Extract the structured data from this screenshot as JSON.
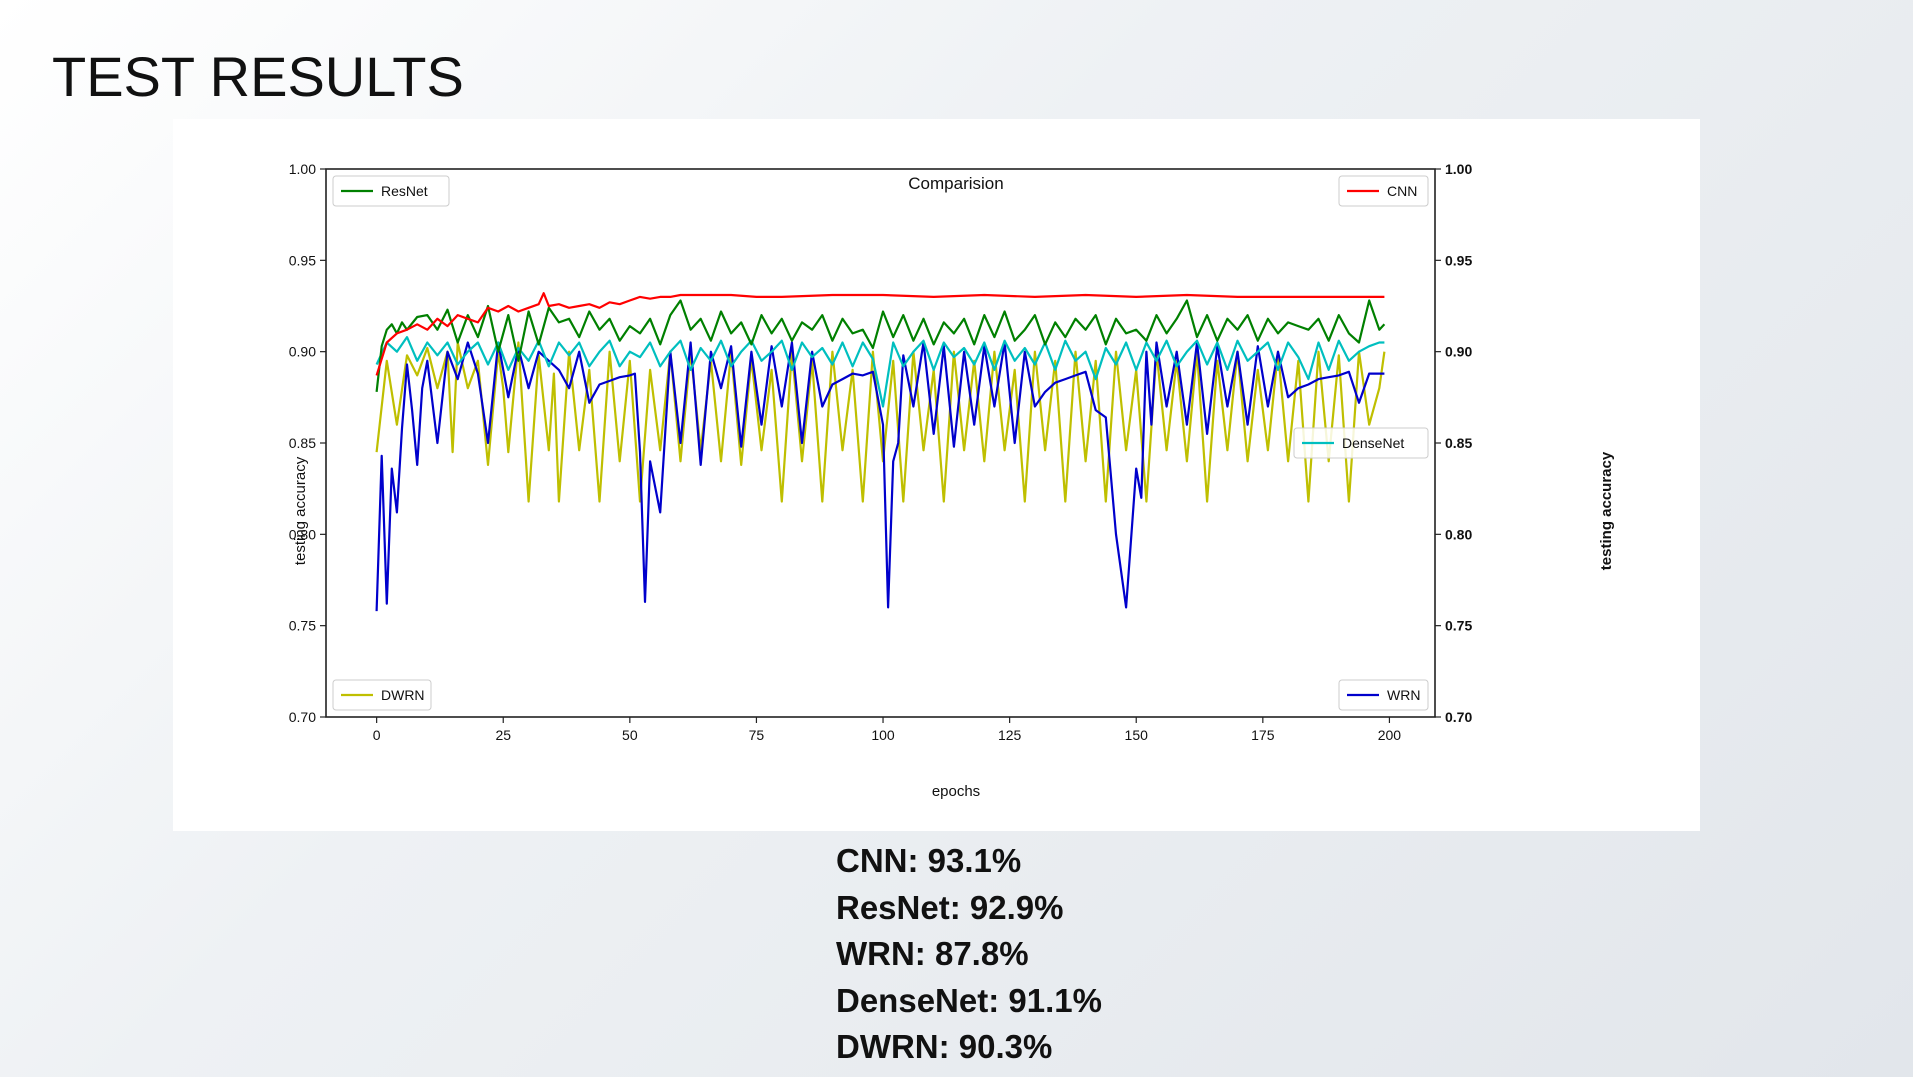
{
  "slide": {
    "title": "TEST RESULTS",
    "results": [
      "CNN: 93.1%",
      "ResNet: 92.9%",
      "WRN: 87.8%",
      "DenseNet: 91.1%",
      "DWRN: 90.3%"
    ]
  },
  "chart_data": {
    "type": "line",
    "title": "Comparision",
    "xlabel": "epochs",
    "ylabel": "testing accuracy",
    "ylabel_right": "testing accuracy",
    "xlim": [
      -10,
      209
    ],
    "ylim": [
      0.7,
      1.0
    ],
    "xticks": [
      0,
      25,
      50,
      75,
      100,
      125,
      150,
      175,
      200
    ],
    "yticks": [
      0.7,
      0.75,
      0.8,
      0.85,
      0.9,
      0.95,
      1.0
    ],
    "ytick_labels": [
      "0.70",
      "0.75",
      "0.80",
      "0.85",
      "0.90",
      "0.95",
      "1.00"
    ],
    "grid": false,
    "legends": [
      {
        "series": "ResNet",
        "placement": "top-left"
      },
      {
        "series": "CNN",
        "placement": "top-right"
      },
      {
        "series": "DenseNet",
        "placement": "center-right"
      },
      {
        "series": "DWRN",
        "placement": "bottom-left"
      },
      {
        "series": "WRN",
        "placement": "bottom-right"
      }
    ],
    "series": [
      {
        "name": "DWRN",
        "color": "#bfbf00",
        "x": [
          0,
          2,
          4,
          6,
          8,
          10,
          12,
          14,
          15,
          16,
          18,
          20,
          22,
          24,
          25,
          26,
          28,
          30,
          32,
          34,
          35,
          36,
          38,
          40,
          42,
          44,
          46,
          48,
          50,
          52,
          54,
          56,
          58,
          60,
          62,
          64,
          66,
          68,
          70,
          72,
          74,
          76,
          78,
          80,
          82,
          84,
          86,
          88,
          90,
          92,
          94,
          96,
          98,
          100,
          102,
          104,
          106,
          108,
          110,
          112,
          114,
          116,
          118,
          120,
          122,
          124,
          126,
          128,
          130,
          132,
          134,
          136,
          138,
          140,
          142,
          144,
          146,
          148,
          150,
          152,
          154,
          156,
          158,
          160,
          162,
          164,
          166,
          168,
          170,
          172,
          174,
          176,
          178,
          180,
          182,
          184,
          186,
          188,
          190,
          192,
          194,
          196,
          198,
          199
        ],
        "y": [
          0.845,
          0.895,
          0.86,
          0.898,
          0.887,
          0.902,
          0.88,
          0.9,
          0.845,
          0.905,
          0.88,
          0.895,
          0.838,
          0.9,
          0.88,
          0.845,
          0.905,
          0.818,
          0.898,
          0.846,
          0.888,
          0.818,
          0.9,
          0.846,
          0.89,
          0.818,
          0.9,
          0.84,
          0.895,
          0.818,
          0.89,
          0.846,
          0.9,
          0.84,
          0.9,
          0.846,
          0.895,
          0.84,
          0.9,
          0.838,
          0.896,
          0.846,
          0.89,
          0.818,
          0.9,
          0.84,
          0.895,
          0.818,
          0.9,
          0.846,
          0.89,
          0.818,
          0.9,
          0.84,
          0.895,
          0.818,
          0.9,
          0.846,
          0.89,
          0.818,
          0.9,
          0.846,
          0.895,
          0.84,
          0.9,
          0.846,
          0.89,
          0.818,
          0.9,
          0.846,
          0.895,
          0.818,
          0.9,
          0.84,
          0.895,
          0.818,
          0.9,
          0.846,
          0.89,
          0.818,
          0.9,
          0.846,
          0.895,
          0.84,
          0.9,
          0.818,
          0.895,
          0.846,
          0.9,
          0.84,
          0.89,
          0.846,
          0.9,
          0.84,
          0.895,
          0.818,
          0.9,
          0.84,
          0.898,
          0.818,
          0.9,
          0.86,
          0.88,
          0.9
        ]
      },
      {
        "name": "WRN",
        "color": "#0000cc",
        "x": [
          0,
          1,
          2,
          3,
          4,
          5,
          6,
          7,
          8,
          9,
          10,
          12,
          14,
          16,
          18,
          20,
          22,
          24,
          26,
          28,
          30,
          32,
          34,
          36,
          38,
          40,
          42,
          44,
          46,
          48,
          50,
          51,
          52,
          53,
          54,
          56,
          58,
          60,
          62,
          64,
          66,
          68,
          70,
          72,
          74,
          76,
          78,
          80,
          82,
          84,
          86,
          88,
          90,
          92,
          94,
          96,
          98,
          100,
          101,
          102,
          103,
          104,
          106,
          108,
          110,
          112,
          114,
          116,
          118,
          120,
          122,
          124,
          126,
          128,
          130,
          132,
          134,
          136,
          138,
          140,
          142,
          144,
          146,
          148,
          150,
          151,
          152,
          153,
          154,
          156,
          158,
          160,
          162,
          164,
          166,
          168,
          170,
          172,
          174,
          176,
          178,
          180,
          182,
          184,
          186,
          188,
          190,
          192,
          194,
          196,
          198,
          199
        ],
        "y": [
          0.758,
          0.843,
          0.762,
          0.836,
          0.812,
          0.858,
          0.893,
          0.868,
          0.838,
          0.88,
          0.895,
          0.85,
          0.9,
          0.885,
          0.905,
          0.888,
          0.85,
          0.905,
          0.875,
          0.902,
          0.88,
          0.9,
          0.895,
          0.89,
          0.88,
          0.9,
          0.872,
          0.882,
          0.884,
          0.886,
          0.887,
          0.888,
          0.845,
          0.763,
          0.84,
          0.812,
          0.9,
          0.85,
          0.905,
          0.838,
          0.9,
          0.88,
          0.903,
          0.848,
          0.9,
          0.86,
          0.903,
          0.87,
          0.905,
          0.85,
          0.9,
          0.87,
          0.882,
          0.885,
          0.888,
          0.887,
          0.889,
          0.86,
          0.76,
          0.84,
          0.85,
          0.898,
          0.87,
          0.905,
          0.855,
          0.903,
          0.848,
          0.9,
          0.86,
          0.903,
          0.87,
          0.905,
          0.85,
          0.9,
          0.87,
          0.878,
          0.883,
          0.885,
          0.887,
          0.889,
          0.868,
          0.864,
          0.8,
          0.76,
          0.836,
          0.82,
          0.9,
          0.86,
          0.905,
          0.87,
          0.9,
          0.86,
          0.905,
          0.855,
          0.903,
          0.87,
          0.9,
          0.86,
          0.903,
          0.87,
          0.9,
          0.875,
          0.88,
          0.882,
          0.885,
          0.886,
          0.887,
          0.889,
          0.872,
          0.888,
          0.888,
          0.888
        ]
      },
      {
        "name": "DenseNet",
        "color": "#00bfbf",
        "x": [
          0,
          2,
          4,
          6,
          8,
          10,
          12,
          14,
          16,
          18,
          20,
          22,
          24,
          26,
          28,
          30,
          32,
          34,
          36,
          38,
          40,
          42,
          44,
          46,
          48,
          50,
          52,
          54,
          56,
          58,
          60,
          62,
          64,
          66,
          68,
          70,
          72,
          74,
          76,
          78,
          80,
          82,
          84,
          86,
          88,
          90,
          92,
          94,
          96,
          98,
          100,
          102,
          104,
          106,
          108,
          110,
          112,
          114,
          116,
          118,
          120,
          122,
          124,
          126,
          128,
          130,
          132,
          134,
          136,
          138,
          140,
          142,
          144,
          146,
          148,
          150,
          152,
          154,
          156,
          158,
          160,
          162,
          164,
          166,
          168,
          170,
          172,
          174,
          176,
          178,
          180,
          182,
          184,
          186,
          188,
          190,
          192,
          194,
          196,
          198,
          199
        ],
        "y": [
          0.893,
          0.905,
          0.9,
          0.908,
          0.895,
          0.905,
          0.898,
          0.905,
          0.893,
          0.9,
          0.905,
          0.893,
          0.905,
          0.89,
          0.902,
          0.895,
          0.906,
          0.892,
          0.905,
          0.898,
          0.905,
          0.892,
          0.9,
          0.906,
          0.892,
          0.9,
          0.897,
          0.905,
          0.892,
          0.9,
          0.906,
          0.89,
          0.902,
          0.895,
          0.906,
          0.892,
          0.9,
          0.906,
          0.895,
          0.9,
          0.906,
          0.89,
          0.905,
          0.897,
          0.902,
          0.893,
          0.905,
          0.892,
          0.905,
          0.896,
          0.87,
          0.905,
          0.892,
          0.9,
          0.906,
          0.89,
          0.905,
          0.897,
          0.902,
          0.893,
          0.905,
          0.89,
          0.906,
          0.895,
          0.902,
          0.893,
          0.905,
          0.89,
          0.906,
          0.895,
          0.9,
          0.885,
          0.902,
          0.893,
          0.905,
          0.89,
          0.905,
          0.895,
          0.906,
          0.892,
          0.9,
          0.906,
          0.893,
          0.905,
          0.89,
          0.906,
          0.895,
          0.9,
          0.905,
          0.89,
          0.905,
          0.897,
          0.885,
          0.905,
          0.89,
          0.906,
          0.895,
          0.9,
          0.903,
          0.905,
          0.905
        ]
      },
      {
        "name": "ResNet",
        "color": "#008000",
        "x": [
          0,
          1,
          2,
          3,
          4,
          5,
          6,
          8,
          10,
          12,
          14,
          16,
          18,
          20,
          22,
          24,
          26,
          28,
          30,
          32,
          34,
          36,
          38,
          40,
          42,
          44,
          46,
          48,
          50,
          52,
          54,
          56,
          58,
          60,
          62,
          64,
          66,
          68,
          70,
          72,
          74,
          76,
          78,
          80,
          82,
          84,
          86,
          88,
          90,
          92,
          94,
          96,
          98,
          100,
          102,
          104,
          106,
          108,
          110,
          112,
          114,
          116,
          118,
          120,
          122,
          124,
          126,
          128,
          130,
          132,
          134,
          136,
          138,
          140,
          142,
          144,
          146,
          148,
          150,
          152,
          154,
          156,
          158,
          160,
          162,
          164,
          166,
          168,
          170,
          172,
          174,
          176,
          178,
          180,
          182,
          184,
          186,
          188,
          190,
          192,
          194,
          196,
          198,
          199
        ],
        "y": [
          0.878,
          0.903,
          0.912,
          0.915,
          0.91,
          0.916,
          0.912,
          0.919,
          0.92,
          0.912,
          0.923,
          0.905,
          0.92,
          0.908,
          0.925,
          0.9,
          0.92,
          0.895,
          0.922,
          0.904,
          0.924,
          0.916,
          0.918,
          0.908,
          0.922,
          0.912,
          0.918,
          0.906,
          0.914,
          0.91,
          0.918,
          0.904,
          0.92,
          0.928,
          0.912,
          0.918,
          0.906,
          0.922,
          0.91,
          0.916,
          0.904,
          0.92,
          0.91,
          0.918,
          0.906,
          0.916,
          0.912,
          0.92,
          0.906,
          0.918,
          0.91,
          0.912,
          0.902,
          0.922,
          0.908,
          0.92,
          0.906,
          0.918,
          0.904,
          0.916,
          0.91,
          0.918,
          0.904,
          0.92,
          0.908,
          0.922,
          0.906,
          0.912,
          0.92,
          0.904,
          0.916,
          0.908,
          0.918,
          0.912,
          0.92,
          0.904,
          0.918,
          0.91,
          0.912,
          0.906,
          0.92,
          0.91,
          0.918,
          0.928,
          0.908,
          0.92,
          0.906,
          0.918,
          0.912,
          0.92,
          0.906,
          0.918,
          0.91,
          0.916,
          0.914,
          0.912,
          0.918,
          0.906,
          0.92,
          0.91,
          0.905,
          0.928,
          0.912,
          0.915
        ]
      },
      {
        "name": "CNN",
        "color": "#ff0000",
        "x": [
          0,
          2,
          4,
          6,
          8,
          10,
          12,
          14,
          16,
          18,
          20,
          22,
          24,
          26,
          28,
          30,
          32,
          33,
          34,
          36,
          38,
          40,
          42,
          44,
          46,
          48,
          50,
          52,
          54,
          56,
          58,
          60,
          65,
          70,
          75,
          80,
          90,
          100,
          110,
          120,
          130,
          140,
          150,
          160,
          170,
          180,
          190,
          199
        ],
        "y": [
          0.887,
          0.905,
          0.91,
          0.912,
          0.915,
          0.912,
          0.918,
          0.914,
          0.92,
          0.918,
          0.916,
          0.924,
          0.922,
          0.925,
          0.922,
          0.924,
          0.926,
          0.932,
          0.925,
          0.926,
          0.924,
          0.925,
          0.926,
          0.924,
          0.927,
          0.926,
          0.928,
          0.93,
          0.929,
          0.93,
          0.93,
          0.931,
          0.931,
          0.931,
          0.93,
          0.93,
          0.931,
          0.931,
          0.93,
          0.931,
          0.93,
          0.931,
          0.93,
          0.931,
          0.93,
          0.93,
          0.93,
          0.93
        ]
      }
    ]
  }
}
